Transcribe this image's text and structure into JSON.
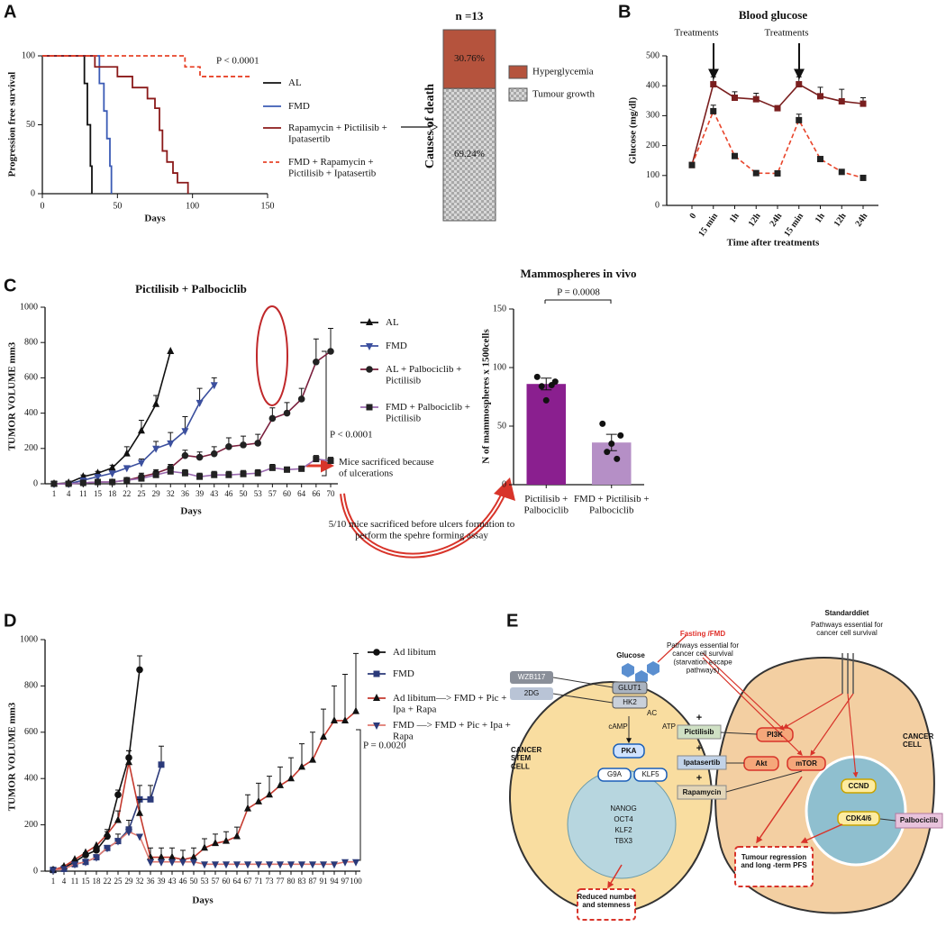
{
  "panels": [
    "A",
    "B",
    "C",
    "D",
    "E"
  ],
  "chart_data": [
    {
      "type": "step",
      "ylabel": "Progression free survival",
      "xlabel": "Days",
      "xlim": [
        0,
        150
      ],
      "xticks": [
        0,
        50,
        100,
        150
      ],
      "ylim": [
        0,
        100
      ],
      "yticks": [
        0,
        50,
        100
      ],
      "annotations": [
        "P < 0.0001"
      ],
      "series": [
        {
          "name": "AL",
          "color": "#111111",
          "line_style": "solid",
          "x": [
            0,
            28,
            30,
            32,
            33
          ],
          "values": [
            100,
            80,
            50,
            20,
            0
          ]
        },
        {
          "name": "FMD",
          "color": "#3b5bb5",
          "line_style": "solid",
          "x": [
            0,
            38,
            41,
            43,
            45,
            46
          ],
          "values": [
            100,
            80,
            60,
            40,
            20,
            0
          ]
        },
        {
          "name": "Rapamycin + Pictilisib + Ipatasertib",
          "color": "#8b1a1a",
          "line_style": "solid",
          "x": [
            0,
            35,
            50,
            60,
            70,
            75,
            78,
            80,
            83,
            87,
            90,
            97
          ],
          "values": [
            100,
            92,
            85,
            77,
            69,
            62,
            46,
            31,
            23,
            15,
            8,
            0
          ]
        },
        {
          "name": "FMD + Rapamycin + Pictilisib + Ipatasertib",
          "color": "#e8442a",
          "line_style": "dashed",
          "x": [
            0,
            95,
            97,
            105,
            138
          ],
          "values": [
            100,
            92,
            92,
            85,
            85
          ]
        }
      ]
    },
    {
      "type": "stacked_bar",
      "title": "n =13",
      "ylabel": "Causes of death",
      "series": [
        {
          "name": "Hyperglycemia",
          "color": "#b5533d",
          "values": [
            30.76
          ],
          "value_labels": [
            "30.76%"
          ]
        },
        {
          "name": "Tumour growth",
          "color": "#c8c8c8",
          "pattern": "checker",
          "values": [
            69.24
          ],
          "value_labels": [
            "69.24%"
          ]
        }
      ]
    },
    {
      "type": "line",
      "title": "Blood glucose",
      "ylabel": "Glucose (mg/dl)",
      "xlabel": "Time after treatments",
      "categories": [
        "0",
        "15 min",
        "1h",
        "12h",
        "24h",
        "15 min",
        "1h",
        "12h",
        "24h"
      ],
      "ylim": [
        0,
        500
      ],
      "yticks": [
        0,
        100,
        200,
        300,
        400,
        500
      ],
      "annotations": [
        "Treatments",
        "Treatments"
      ],
      "series": [
        {
          "color": "#7a1f1f",
          "line_style": "solid",
          "marker": "square",
          "values": [
            135,
            405,
            360,
            355,
            325,
            405,
            365,
            348,
            340
          ],
          "errors": [
            null,
            25,
            20,
            20,
            null,
            25,
            30,
            40,
            20
          ]
        },
        {
          "color": "#e8442a",
          "marker_color": "#222222",
          "line_style": "dashed",
          "marker": "square",
          "values": [
            135,
            315,
            165,
            108,
            107,
            285,
            155,
            112,
            92
          ],
          "errors": [
            null,
            20,
            null,
            null,
            null,
            20,
            null,
            null,
            null
          ]
        }
      ]
    },
    {
      "type": "line",
      "title": "Pictilisib + Palbociclib",
      "ylabel": "TUMOR VOLUME mm3",
      "xlabel": "Days",
      "categories": [
        "1",
        "4",
        "11",
        "15",
        "18",
        "22",
        "25",
        "29",
        "32",
        "36",
        "39",
        "43",
        "46",
        "50",
        "53",
        "57",
        "60",
        "64",
        "66",
        "70"
      ],
      "ylim": [
        0,
        1000
      ],
      "yticks": [
        0,
        200,
        400,
        600,
        800,
        1000
      ],
      "annotations": [
        "P < 0.0001",
        "Mice sacrificed because of ulcerations",
        "5/10 mice sacrificed before ulcers formation to perform the spehre forming assay"
      ],
      "series": [
        {
          "name": "AL",
          "color": "#111111",
          "marker": "triangle",
          "line_style": "solid",
          "values": [
            0,
            5,
            40,
            60,
            90,
            170,
            300,
            450,
            750,
            null,
            null,
            null,
            null,
            null,
            null,
            null,
            null,
            null,
            null,
            null
          ],
          "errors": [
            null,
            null,
            10,
            10,
            15,
            40,
            60,
            50,
            null,
            null,
            null,
            null,
            null,
            null,
            null,
            null,
            null,
            null,
            null,
            null
          ]
        },
        {
          "name": "FMD",
          "color": "#3b4f9e",
          "marker": "triangle-down",
          "line_style": "solid",
          "values": [
            0,
            0,
            20,
            40,
            60,
            90,
            120,
            200,
            230,
            300,
            460,
            560,
            null,
            null,
            null,
            null,
            null,
            null,
            null,
            null
          ],
          "errors": [
            null,
            null,
            null,
            null,
            null,
            null,
            20,
            40,
            60,
            80,
            80,
            40,
            null,
            null,
            null,
            null,
            null,
            null,
            null,
            null
          ]
        },
        {
          "name": "AL + Palbociclib + Pictilisib",
          "color": "#7a1f3d",
          "marker_color": "#222222",
          "marker": "circle",
          "line_style": "solid",
          "values": [
            0,
            0,
            5,
            10,
            10,
            20,
            40,
            60,
            90,
            160,
            150,
            170,
            210,
            220,
            230,
            370,
            400,
            480,
            690,
            750
          ],
          "errors": [
            null,
            null,
            null,
            null,
            null,
            10,
            20,
            20,
            20,
            30,
            30,
            40,
            50,
            50,
            50,
            60,
            60,
            60,
            130,
            130
          ]
        },
        {
          "name": "FMD + Palbociclib + Pictilisib",
          "color": "#9b6bb0",
          "marker_color": "#222222",
          "marker": "square",
          "line_style": "solid",
          "values": [
            0,
            0,
            5,
            10,
            10,
            20,
            30,
            50,
            70,
            60,
            40,
            50,
            50,
            55,
            60,
            90,
            80,
            85,
            140,
            130
          ],
          "errors": [
            null,
            null,
            null,
            null,
            null,
            10,
            10,
            20,
            20,
            20,
            20,
            20,
            20,
            20,
            20,
            20,
            15,
            15,
            20,
            20
          ]
        }
      ]
    },
    {
      "type": "bar",
      "title": "Mammospheres in vivo",
      "ylabel": "N of mammospheres x 1500cells",
      "categories": [
        "Pictilisib + Palbociclib",
        "FMD + Pictilisib + Palbociclib"
      ],
      "values": [
        86,
        36
      ],
      "errors": [
        5,
        7
      ],
      "colors": [
        "#8a1f8f",
        "#b58fc6"
      ],
      "points": [
        [
          92,
          88,
          84,
          85,
          72
        ],
        [
          52,
          42,
          28,
          22,
          35
        ]
      ],
      "ylim": [
        0,
        150
      ],
      "yticks": [
        0,
        50,
        100,
        150
      ],
      "annotations": [
        "P = 0.0008"
      ]
    },
    {
      "type": "line",
      "ylabel": "TUMOR VOLUME mm3",
      "xlabel": "Days",
      "categories": [
        "1",
        "4",
        "11",
        "15",
        "18",
        "22",
        "25",
        "29",
        "32",
        "36",
        "39",
        "43",
        "46",
        "50",
        "53",
        "57",
        "60",
        "64",
        "67",
        "71",
        "73",
        "77",
        "80",
        "83",
        "87",
        "91",
        "94",
        "97",
        "100"
      ],
      "ylim": [
        0,
        1000
      ],
      "yticks": [
        0,
        200,
        400,
        600,
        800,
        1000
      ],
      "annotations": [
        "P = 0.0020"
      ],
      "series": [
        {
          "name": "Ad libitum",
          "color": "#111111",
          "marker": "circle",
          "line_style": "solid",
          "values": [
            5,
            15,
            40,
            70,
            90,
            150,
            330,
            490,
            870,
            null,
            null,
            null,
            null,
            null,
            null,
            null,
            null,
            null,
            null,
            null,
            null,
            null,
            null,
            null,
            null,
            null,
            null,
            null,
            null
          ],
          "errors": [
            null,
            null,
            null,
            10,
            15,
            20,
            20,
            30,
            60,
            null,
            null,
            null,
            null,
            null,
            null,
            null,
            null,
            null,
            null,
            null,
            null,
            null,
            null,
            null,
            null,
            null,
            null,
            null,
            null
          ]
        },
        {
          "name": "FMD",
          "color": "#2b3a7a",
          "marker": "square",
          "line_style": "solid",
          "values": [
            5,
            10,
            30,
            40,
            60,
            100,
            130,
            180,
            310,
            310,
            460,
            null,
            null,
            null,
            null,
            null,
            null,
            null,
            null,
            null,
            null,
            null,
            null,
            null,
            null,
            null,
            null,
            null,
            null
          ],
          "errors": [
            null,
            null,
            null,
            null,
            null,
            null,
            30,
            40,
            60,
            60,
            80,
            null,
            null,
            null,
            null,
            null,
            null,
            null,
            null,
            null,
            null,
            null,
            null,
            null,
            null,
            null,
            null,
            null,
            null
          ]
        },
        {
          "name": "Ad libitum—> FMD + Pic + Ipa + Rapa",
          "color": "#c43a2f",
          "marker_color": "#111111",
          "marker": "triangle",
          "line_style": "solid",
          "values": [
            5,
            20,
            50,
            80,
            110,
            160,
            220,
            470,
            250,
            60,
            60,
            60,
            50,
            60,
            100,
            120,
            130,
            150,
            270,
            300,
            330,
            370,
            400,
            450,
            480,
            580,
            650,
            650,
            690
          ],
          "errors": [
            null,
            null,
            null,
            null,
            null,
            20,
            40,
            50,
            60,
            40,
            40,
            40,
            40,
            40,
            40,
            40,
            40,
            40,
            60,
            80,
            80,
            80,
            90,
            100,
            120,
            120,
            150,
            200,
            250
          ]
        },
        {
          "name": "FMD —> FMD + Pic + Ipa + Rapa",
          "color": "#e07a70",
          "marker_color": "#2b3a7a",
          "marker": "triangle-down",
          "line_style": "solid",
          "values": [
            5,
            10,
            30,
            40,
            60,
            100,
            130,
            170,
            150,
            40,
            40,
            40,
            40,
            40,
            30,
            30,
            30,
            30,
            30,
            30,
            30,
            30,
            30,
            30,
            30,
            30,
            30,
            40,
            40
          ]
        }
      ]
    }
  ],
  "diagram": {
    "standard_diet": "Standarddiet",
    "standard_pathways": "Pathways essential for cancer cell survival",
    "fasting": "Fasting /FMD",
    "starvation_pathways": "Pathways essential for cancer cell survival (starvation escape pathways)",
    "glucose": "Glucose",
    "wzb117": "WZB117",
    "glut1": "GLUT1",
    "dg2": "2DG",
    "hk2": "HK2",
    "ac": "AC",
    "atp": "ATP",
    "camp": "cAMP",
    "stem_cell": "CANCER STEM CELL",
    "pka": "PKA",
    "g9a": "G9A",
    "klf5": "KLF5",
    "nanog": "NANOG",
    "oct4": "OCT4",
    "klf2": "KLF2",
    "tbx3": "TBX3",
    "reduced": "Reduced number and stemness",
    "pictilisib": "Pictilisib",
    "ipatasertib": "Ipatasertib",
    "rapamycin": "Rapamycin",
    "plus": "+",
    "pi3k": "PI3K",
    "akt": "Akt",
    "mtor": "mTOR",
    "cancer_cell": "CANCER CELL",
    "ccnd": "CCND",
    "cdk": "CDK4/6",
    "palbociclib": "Palbociclib",
    "regression": "Tumour regression and long -term PFS"
  }
}
